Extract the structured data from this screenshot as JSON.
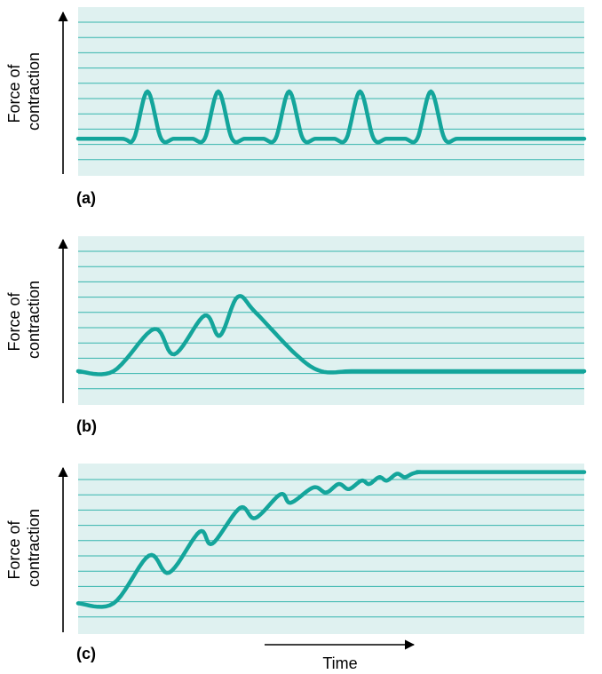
{
  "colors": {
    "plot_background": "#dff1f0",
    "grid_line": "#35b5ad",
    "curve": "#14a59b",
    "axis": "#000000"
  },
  "chart_data": [
    {
      "type": "line",
      "panel_label": "(a)",
      "ylabel_line1": "Force of",
      "ylabel_line2": "contraction",
      "xlabel": "",
      "grid": true,
      "xlim": [
        0,
        100
      ],
      "ylim": [
        0,
        100
      ],
      "series": [
        {
          "x": [
            0,
            8.5,
            11,
            13.7,
            16.4,
            19,
            22.5,
            25,
            27.7,
            30.4,
            33,
            36.5,
            39,
            41.7,
            44.4,
            47,
            50.5,
            53,
            55.7,
            58.4,
            61,
            64.5,
            67,
            69.7,
            72.4,
            75,
            80,
            100
          ],
          "y": [
            22,
            22,
            22,
            50,
            22,
            22,
            22,
            22,
            50,
            22,
            22,
            22,
            22,
            50,
            22,
            22,
            22,
            22,
            50,
            22,
            22,
            22,
            22,
            50,
            22,
            22,
            22,
            22
          ]
        }
      ]
    },
    {
      "type": "line",
      "panel_label": "(b)",
      "ylabel_line1": "Force of",
      "ylabel_line2": "contraction",
      "xlabel": "",
      "grid": true,
      "xlim": [
        0,
        100
      ],
      "ylim": [
        0,
        100
      ],
      "series": [
        {
          "x": [
            0,
            7,
            15,
            19,
            25,
            28,
            31.5,
            35,
            43,
            48,
            54,
            60,
            100
          ],
          "y": [
            20,
            20,
            45,
            30,
            53,
            41,
            64,
            55,
            30,
            20,
            20,
            20,
            20
          ]
        }
      ]
    },
    {
      "type": "line",
      "panel_label": "(c)",
      "ylabel_line1": "Force of",
      "ylabel_line2": "contraction",
      "xlabel": "Time",
      "grid": true,
      "xlim": [
        0,
        100
      ],
      "ylim": [
        0,
        100
      ],
      "series": [
        {
          "x": [
            0,
            7,
            14,
            18,
            24,
            26.5,
            32,
            35,
            40,
            42,
            46.5,
            49,
            51.5,
            53.5,
            56,
            57.5,
            59.5,
            61,
            63,
            64.5,
            66,
            67.5,
            70,
            100
          ],
          "y": [
            18,
            18,
            46,
            36,
            60,
            53,
            74,
            68,
            82,
            77,
            86,
            83,
            88,
            85,
            90,
            88,
            92,
            90,
            94,
            92,
            94,
            95,
            95,
            95
          ]
        }
      ]
    }
  ]
}
